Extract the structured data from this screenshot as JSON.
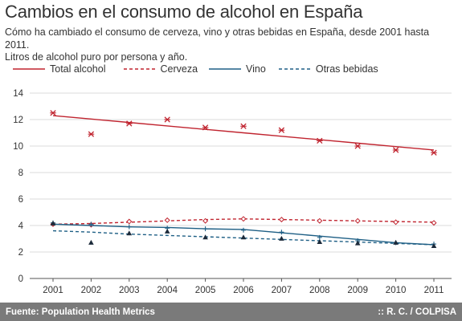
{
  "header": {
    "title": "Cambios en el consumo de alcohol en España",
    "subtitle_line1": "Cómo ha cambiado el consumo de cerveza, vino y otras bebidas en España, desde 2001 hasta 2011.",
    "subtitle_line2": "Litros de alcohol puro por persona y año."
  },
  "footer": {
    "source": "Fuente: Population Health Metrics",
    "credit": ":: R. C. / COLPISA"
  },
  "chart_data": {
    "type": "scatter",
    "title": "Cambios en el consumo de alcohol en España",
    "xlabel": "",
    "ylabel": "",
    "x": [
      2001,
      2002,
      2003,
      2004,
      2005,
      2006,
      2007,
      2008,
      2009,
      2010,
      2011
    ],
    "ylim": [
      0,
      14
    ],
    "yticks": [
      0,
      2,
      4,
      6,
      8,
      10,
      12,
      14
    ],
    "grid": true,
    "legend_position": "top",
    "series": [
      {
        "name": "Total alcohol",
        "color": "#c0242f",
        "line_style": "solid",
        "marker": "asterisk",
        "points": [
          12.5,
          10.9,
          11.7,
          12.0,
          11.4,
          11.5,
          11.2,
          10.4,
          10.0,
          9.7,
          9.5
        ],
        "trend": [
          12.3,
          12.04,
          11.78,
          11.52,
          11.26,
          11.0,
          10.74,
          10.48,
          10.22,
          9.96,
          9.7
        ]
      },
      {
        "name": "Cerveza",
        "color": "#c0242f",
        "line_style": "dashed",
        "marker": "diamond",
        "points": [
          4.1,
          4.05,
          4.3,
          4.4,
          4.35,
          4.5,
          4.45,
          4.35,
          4.35,
          4.25,
          4.2
        ],
        "trend": [
          4.1,
          4.15,
          4.25,
          4.35,
          4.45,
          4.5,
          4.45,
          4.4,
          4.35,
          4.3,
          4.25
        ]
      },
      {
        "name": "Vino",
        "color": "#1e5f85",
        "line_style": "solid",
        "marker": "plus",
        "points": [
          4.2,
          4.1,
          3.9,
          3.8,
          3.75,
          3.65,
          3.5,
          3.1,
          2.85,
          2.7,
          2.6
        ],
        "trend": [
          4.1,
          4.0,
          3.9,
          3.85,
          3.75,
          3.7,
          3.45,
          3.2,
          2.95,
          2.7,
          2.55
        ]
      },
      {
        "name": "Otras bebidas",
        "color": "#1e5f85",
        "line_style": "dashed",
        "marker": "triangle",
        "points": [
          4.15,
          2.7,
          3.4,
          3.55,
          3.1,
          3.1,
          3.0,
          2.75,
          2.65,
          2.7,
          2.45
        ],
        "trend": [
          3.6,
          3.5,
          3.35,
          3.25,
          3.15,
          3.05,
          2.95,
          2.85,
          2.75,
          2.65,
          2.55
        ]
      }
    ]
  }
}
